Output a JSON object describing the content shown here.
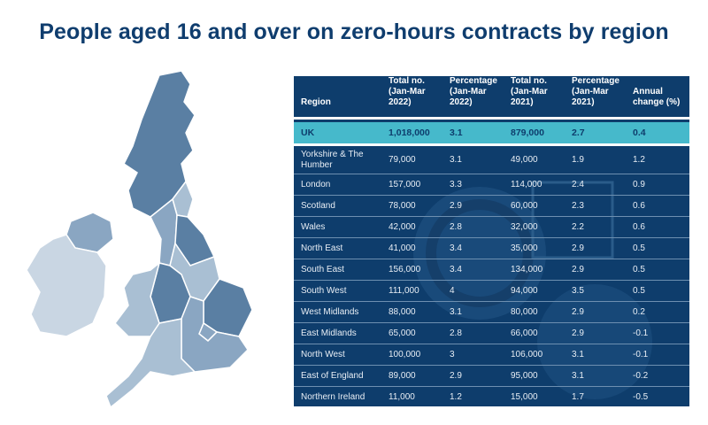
{
  "title": "People aged 16 and over on zero-hours contracts by region",
  "colors": {
    "title": "#0f3d6e",
    "table_bg": "#0e3d6c",
    "highlight": "#46b9cb",
    "map_dark": "#5a7fa3",
    "map_light": "#a9bfd3"
  },
  "chart_data": {
    "type": "table",
    "columns": [
      "Region",
      "Total no. (Jan-Mar 2022)",
      "Percentage (Jan-Mar 2022)",
      "Total no. (Jan-Mar 2021)",
      "Percentage (Jan-Mar 2021)",
      "Annual change (%)"
    ],
    "rows": [
      [
        "UK",
        "1,018,000",
        "3.1",
        "879,000",
        "2.7",
        "0.4"
      ],
      [
        "Yorkshire & The Humber",
        "79,000",
        "3.1",
        "49,000",
        "1.9",
        "1.2"
      ],
      [
        "London",
        "157,000",
        "3.3",
        "114,000",
        "2.4",
        "0.9"
      ],
      [
        "Scotland",
        "78,000",
        "2.9",
        "60,000",
        "2.3",
        "0.6"
      ],
      [
        "Wales",
        "42,000",
        "2.8",
        "32,000",
        "2.2",
        "0.6"
      ],
      [
        "North East",
        "41,000",
        "3.4",
        "35,000",
        "2.9",
        "0.5"
      ],
      [
        "South East",
        "156,000",
        "3.4",
        "134,000",
        "2.9",
        "0.5"
      ],
      [
        "South West",
        "111,000",
        "4",
        "94,000",
        "3.5",
        "0.5"
      ],
      [
        "West Midlands",
        "88,000",
        "3.1",
        "80,000",
        "2.9",
        "0.2"
      ],
      [
        "East Midlands",
        "65,000",
        "2.8",
        "66,000",
        "2.9",
        "-0.1"
      ],
      [
        "North West",
        "100,000",
        "3",
        "106,000",
        "3.1",
        "-0.1"
      ],
      [
        "East of England",
        "89,000",
        "2.9",
        "95,000",
        "3.1",
        "-0.2"
      ],
      [
        "Northern Ireland",
        "11,000",
        "1.2",
        "15,000",
        "1.7",
        "-0.5"
      ]
    ],
    "highlight_row": "UK"
  }
}
